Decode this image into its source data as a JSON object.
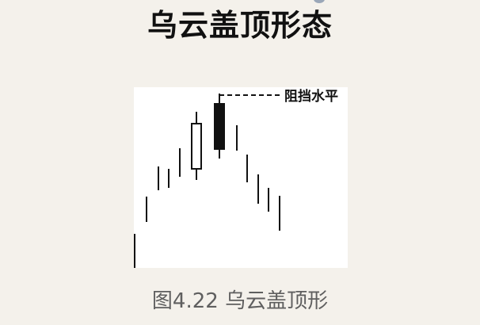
{
  "header": {
    "title": "乌云盖顶形态"
  },
  "figure": {
    "annotation_label": "阻挡水平",
    "caption": "图4.22 乌云盖顶形"
  },
  "colors": {
    "background": "#f4f1eb",
    "panel": "#ffffff",
    "ink": "#111111",
    "caption": "#5f5f5f"
  }
}
